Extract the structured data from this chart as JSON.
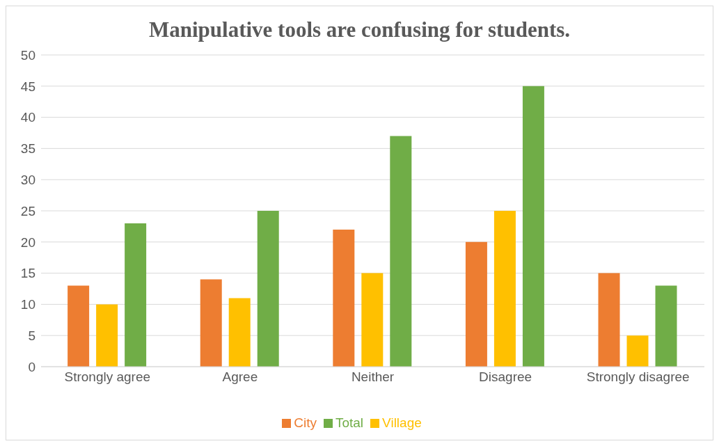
{
  "chart_data": {
    "type": "bar",
    "title": "Manipulative tools are confusing for students.",
    "categories": [
      "Strongly agree",
      "Agree",
      "Neither",
      "Disagree",
      "Strongly disagree"
    ],
    "series": [
      {
        "name": "City",
        "color": "#ed7d31",
        "values": [
          13,
          14,
          22,
          20,
          15
        ]
      },
      {
        "name": "Village",
        "color": "#ffc000",
        "values": [
          10,
          11,
          15,
          25,
          5
        ]
      },
      {
        "name": "Total",
        "color": "#70ad47",
        "values": [
          23,
          25,
          37,
          45,
          13
        ]
      }
    ],
    "ylim": [
      0,
      50
    ],
    "yticks": [
      0,
      5,
      10,
      15,
      20,
      25,
      30,
      35,
      40,
      45,
      50
    ],
    "grid": "y",
    "legend": "bottom"
  }
}
